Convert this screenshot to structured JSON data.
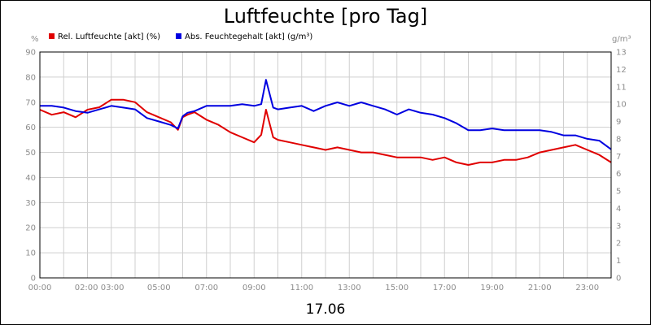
{
  "chart_data": {
    "type": "line",
    "title": "Luftfeuchte [pro Tag]",
    "date_label": "17.06",
    "ylabel_left": "%",
    "ylabel_right": "g/m³",
    "ylim_left": [
      0,
      90
    ],
    "ylim_right": [
      0,
      13
    ],
    "yticks_left": [
      "0",
      "10",
      "20",
      "30",
      "40",
      "50",
      "60",
      "70",
      "80",
      "90"
    ],
    "yticks_right": [
      "0",
      "1",
      "2",
      "3",
      "4",
      "5",
      "6",
      "7",
      "8",
      "9",
      "10",
      "11",
      "12",
      "13"
    ],
    "xlim_hours": [
      0,
      24
    ],
    "xticks": [
      {
        "hour": 0,
        "label": "00:00"
      },
      {
        "hour": 2.5,
        "label": "02:00 03:00"
      },
      {
        "hour": 5,
        "label": "05:00"
      },
      {
        "hour": 7,
        "label": "07:00"
      },
      {
        "hour": 9,
        "label": "09:00"
      },
      {
        "hour": 11,
        "label": "11:00"
      },
      {
        "hour": 13,
        "label": "13:00"
      },
      {
        "hour": 15,
        "label": "15:00"
      },
      {
        "hour": 17,
        "label": "17:00"
      },
      {
        "hour": 19,
        "label": "19:00"
      },
      {
        "hour": 21,
        "label": "21:00"
      },
      {
        "hour": 23,
        "label": "23:00"
      }
    ],
    "grid": true,
    "legend_position": "top-left",
    "series": [
      {
        "name": "Rel. Luftfeuchte [akt] (%)",
        "color": "#e00000",
        "axis": "left",
        "x": [
          0,
          0.5,
          1,
          1.5,
          2,
          2.5,
          3,
          3.5,
          4,
          4.5,
          5,
          5.5,
          5.8,
          6,
          6.2,
          6.5,
          7,
          7.5,
          8,
          8.5,
          9,
          9.3,
          9.5,
          9.8,
          10,
          10.5,
          11,
          11.5,
          12,
          12.5,
          13,
          13.5,
          14,
          14.5,
          15,
          15.5,
          16,
          16.5,
          17,
          17.5,
          18,
          18.5,
          19,
          19.5,
          20,
          20.5,
          21,
          21.5,
          22,
          22.5,
          23,
          23.5,
          24
        ],
        "values": [
          67,
          65,
          66,
          64,
          67,
          68,
          71,
          71,
          70,
          66,
          64,
          62,
          59,
          64,
          65,
          66,
          63,
          61,
          58,
          56,
          54,
          57,
          67,
          56,
          55,
          54,
          53,
          52,
          51,
          52,
          51,
          50,
          50,
          49,
          48,
          48,
          48,
          47,
          48,
          46,
          45,
          46,
          46,
          47,
          47,
          48,
          50,
          51,
          52,
          53,
          51,
          49,
          46
        ]
      },
      {
        "name": "Abs. Feuchtegehalt [akt] (g/m³)",
        "color": "#0000e0",
        "axis": "right",
        "x": [
          0,
          0.5,
          1,
          1.5,
          2,
          2.5,
          3,
          3.5,
          4,
          4.5,
          5,
          5.5,
          5.8,
          6,
          6.2,
          6.5,
          7,
          7.5,
          8,
          8.5,
          9,
          9.3,
          9.5,
          9.8,
          10,
          10.5,
          11,
          11.5,
          12,
          12.5,
          13,
          13.5,
          14,
          14.5,
          15,
          15.5,
          16,
          16.5,
          17,
          17.5,
          18,
          18.5,
          19,
          19.5,
          20,
          20.5,
          21,
          21.5,
          22,
          22.5,
          23,
          23.5,
          24
        ],
        "values": [
          9.9,
          9.9,
          9.8,
          9.6,
          9.5,
          9.7,
          9.9,
          9.8,
          9.7,
          9.2,
          9.0,
          8.8,
          8.6,
          9.3,
          9.5,
          9.6,
          9.9,
          9.9,
          9.9,
          10.0,
          9.9,
          10.0,
          11.4,
          9.8,
          9.7,
          9.8,
          9.9,
          9.6,
          9.9,
          10.1,
          9.9,
          10.1,
          9.9,
          9.7,
          9.4,
          9.7,
          9.5,
          9.4,
          9.2,
          8.9,
          8.5,
          8.5,
          8.6,
          8.5,
          8.5,
          8.5,
          8.5,
          8.4,
          8.2,
          8.2,
          8.0,
          7.9,
          7.4
        ]
      }
    ]
  }
}
